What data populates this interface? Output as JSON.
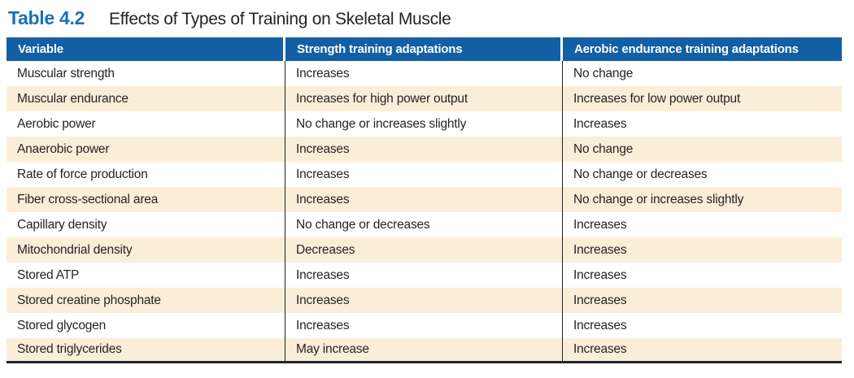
{
  "caption": {
    "label": "Table 4.2",
    "title": "Effects of Types of Training on Skeletal Muscle"
  },
  "table": {
    "columns": [
      "Variable",
      "Strength training adaptations",
      "Aerobic endurance training adaptations"
    ],
    "rows": [
      [
        "Muscular strength",
        "Increases",
        "No change"
      ],
      [
        "Muscular endurance",
        "Increases for high power output",
        "Increases for low power output"
      ],
      [
        "Aerobic power",
        "No change or increases slightly",
        "Increases"
      ],
      [
        "Anaerobic power",
        "Increases",
        "No change"
      ],
      [
        "Rate of force production",
        "Increases",
        "No change or decreases"
      ],
      [
        "Fiber cross-sectional area",
        "Increases",
        "No change or increases slightly"
      ],
      [
        "Capillary density",
        "No change or decreases",
        "Increases"
      ],
      [
        "Mitochondrial density",
        "Decreases",
        "Increases"
      ],
      [
        "Stored ATP",
        "Increases",
        "Increases"
      ],
      [
        "Stored creatine phosphate",
        "Increases",
        "Increases"
      ],
      [
        "Stored glycogen",
        "Increases",
        "Increases"
      ],
      [
        "Stored triglycerides",
        "May increase",
        "Increases"
      ]
    ]
  },
  "colors": {
    "caption_blue": "#1c70b8",
    "header_blue": "#135fa4",
    "row_alternate": "#fbeed8",
    "text_ink": "#262324",
    "column_rule": "#1f1f1f",
    "bottom_rule": "#20242a"
  }
}
